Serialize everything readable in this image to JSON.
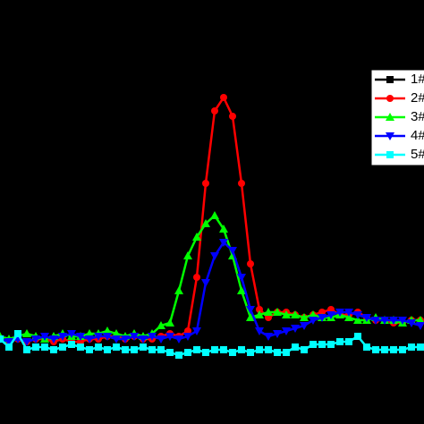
{
  "chart_data": {
    "type": "line",
    "x": [
      0,
      10,
      20,
      30,
      40,
      50,
      60,
      70,
      80,
      90,
      100,
      110,
      120,
      130,
      140,
      150,
      160,
      170,
      180,
      190,
      200,
      210,
      220,
      230,
      240,
      250,
      260,
      270,
      280,
      290,
      300,
      310,
      320,
      330,
      340,
      350,
      360,
      370,
      380,
      390,
      400,
      410,
      420,
      430,
      440,
      450,
      460,
      470
    ],
    "xlim": [
      0,
      474
    ],
    "ylim": [
      0,
      100
    ],
    "legend": "right",
    "series": [
      {
        "name": "1#",
        "color": "#000000",
        "marker": "square",
        "values": [
          6,
          5,
          6,
          6,
          7,
          6,
          6,
          6,
          6,
          5,
          6,
          6,
          6,
          6,
          6,
          6,
          6,
          6,
          6,
          6,
          6,
          6,
          7,
          8,
          9,
          9,
          8,
          7,
          6,
          6,
          6,
          6,
          6,
          6,
          6,
          6,
          6,
          6,
          6,
          6,
          6,
          6,
          6,
          6,
          6,
          6,
          6,
          6
        ]
      },
      {
        "name": "2#",
        "color": "#ff0000",
        "marker": "circle",
        "values": [
          7,
          6,
          7,
          6,
          7,
          7,
          6,
          7,
          6,
          6,
          7,
          7,
          8,
          8,
          7,
          8,
          7,
          7,
          8,
          9,
          8,
          10,
          30,
          65,
          92,
          97,
          90,
          65,
          35,
          18,
          15,
          17,
          17,
          16,
          15,
          16,
          17,
          18,
          16,
          16,
          17,
          15,
          14,
          14,
          13,
          13,
          14,
          14
        ]
      },
      {
        "name": "3#",
        "color": "#00ff00",
        "marker": "triangle-up",
        "values": [
          8,
          7,
          8,
          9,
          8,
          7,
          8,
          9,
          8,
          8,
          9,
          9,
          10,
          9,
          8,
          9,
          8,
          9,
          12,
          13,
          25,
          38,
          45,
          50,
          53,
          48,
          38,
          25,
          15,
          16,
          17,
          17,
          16,
          16,
          15,
          16,
          15,
          15,
          16,
          15,
          14,
          14,
          15,
          14,
          14,
          13,
          14,
          14
        ]
      },
      {
        "name": "4#",
        "color": "#0000ff",
        "marker": "triangle-down",
        "values": [
          7,
          6,
          7,
          6,
          7,
          8,
          7,
          8,
          9,
          8,
          7,
          8,
          8,
          7,
          7,
          8,
          7,
          8,
          7,
          8,
          7,
          8,
          10,
          28,
          38,
          43,
          40,
          30,
          18,
          10,
          8,
          9,
          10,
          11,
          12,
          14,
          15,
          16,
          17,
          17,
          16,
          15,
          14,
          14,
          14,
          14,
          13,
          12
        ]
      },
      {
        "name": "5#",
        "color": "#00ffff",
        "marker": "square",
        "values": [
          7,
          4,
          9,
          3,
          4,
          4,
          3,
          4,
          5,
          4,
          3,
          4,
          3,
          4,
          3,
          3,
          4,
          3,
          3,
          2,
          1,
          2,
          3,
          2,
          3,
          3,
          2,
          3,
          2,
          3,
          3,
          2,
          2,
          4,
          3,
          5,
          5,
          5,
          6,
          6,
          8,
          4,
          3,
          3,
          3,
          3,
          4,
          4
        ]
      }
    ]
  }
}
